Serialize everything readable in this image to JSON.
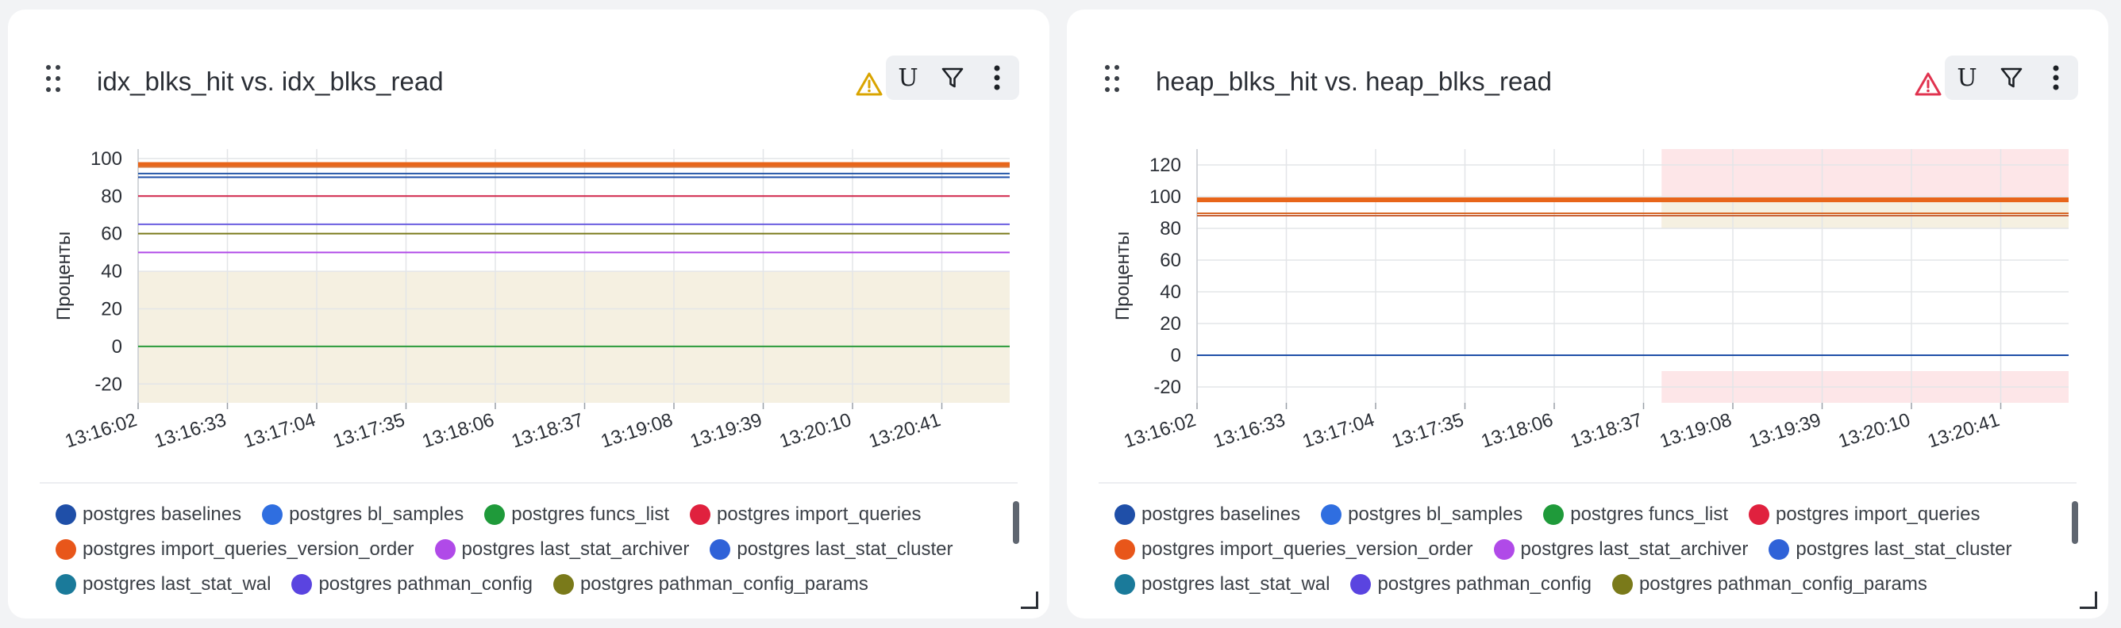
{
  "panels": [
    {
      "id": "left",
      "title": "idx_blks_hit vs. idx_blks_read",
      "warning": {
        "icon": "warning-triangle-icon",
        "color": "#d9a400"
      },
      "toolbar": {
        "unit_label": "U",
        "filter_icon": "filter-icon",
        "menu_icon": "more-vertical-icon"
      },
      "chart_data": {
        "type": "line",
        "ylabel": "Проценты",
        "ylim": [
          -30,
          105
        ],
        "yticks": [
          "100",
          "80",
          "60",
          "40",
          "20",
          "0",
          "-20"
        ],
        "xticks": [
          "13:16:02",
          "13:16:33",
          "13:17:04",
          "13:17:35",
          "13:18:06",
          "13:18:37",
          "13:19:08",
          "13:19:39",
          "13:20:10",
          "13:20:41"
        ],
        "bands": [
          {
            "from": -30,
            "to": 40,
            "color": "#f5f0e1",
            "span": [
              0,
              1
            ]
          }
        ],
        "series": [
          {
            "value": 97,
            "color": "#e8651a",
            "width": 5
          },
          {
            "value": 95.5,
            "color": "#d9763a",
            "width": 2
          },
          {
            "value": 92,
            "color": "#2557a8",
            "width": 2
          },
          {
            "value": 90,
            "color": "#1f4fa8",
            "width": 2
          },
          {
            "value": 80,
            "color": "#d0254a",
            "width": 2
          },
          {
            "value": 65,
            "color": "#6a5de0",
            "width": 2
          },
          {
            "value": 60,
            "color": "#7a7a1a",
            "width": 2
          },
          {
            "value": 50,
            "color": "#b04ae8",
            "width": 2
          },
          {
            "value": 0,
            "color": "#2a9a3a",
            "width": 2
          }
        ]
      }
    },
    {
      "id": "right",
      "title": "heap_blks_hit vs. heap_blks_read",
      "warning": {
        "icon": "warning-triangle-icon",
        "color": "#e0334f"
      },
      "toolbar": {
        "unit_label": "U",
        "filter_icon": "filter-icon",
        "menu_icon": "more-vertical-icon"
      },
      "chart_data": {
        "type": "line",
        "ylabel": "Проценты",
        "ylim": [
          -30,
          130
        ],
        "yticks": [
          "120",
          "100",
          "80",
          "60",
          "40",
          "20",
          "0",
          "-20"
        ],
        "xticks": [
          "13:16:02",
          "13:16:33",
          "13:17:04",
          "13:17:35",
          "13:18:06",
          "13:18:37",
          "13:19:08",
          "13:19:39",
          "13:20:10",
          "13:20:41"
        ],
        "bands": [
          {
            "from": 80,
            "to": 130,
            "color": "#fde6e8",
            "span": [
              0.533,
              1
            ]
          },
          {
            "from": 80,
            "to": 97,
            "color": "#f5f0e1",
            "span": [
              0.533,
              1
            ]
          },
          {
            "from": -30,
            "to": -10,
            "color": "#fde6e8",
            "span": [
              0.533,
              1
            ]
          }
        ],
        "series": [
          {
            "value": 98,
            "color": "#e8651a",
            "width": 6
          },
          {
            "value": 89.5,
            "color": "#d96a2a",
            "width": 2
          },
          {
            "value": 88,
            "color": "#c8643a",
            "width": 2
          },
          {
            "value": 0,
            "color": "#1f4fa8",
            "width": 2
          }
        ]
      }
    }
  ],
  "legend": [
    {
      "label": "postgres baselines",
      "color": "#1f4fa8"
    },
    {
      "label": "postgres bl_samples",
      "color": "#2f6ee0"
    },
    {
      "label": "postgres funcs_list",
      "color": "#1f9a3a"
    },
    {
      "label": "postgres import_queries",
      "color": "#e0213e"
    },
    {
      "label": "postgres import_queries_version_order",
      "color": "#e8561a"
    },
    {
      "label": "postgres last_stat_archiver",
      "color": "#b04ae8"
    },
    {
      "label": "postgres last_stat_cluster",
      "color": "#2f62d8"
    },
    {
      "label": "postgres last_stat_wal",
      "color": "#1a7a9a"
    },
    {
      "label": "postgres pathman_config",
      "color": "#5a44e0"
    },
    {
      "label": "postgres pathman_config_params",
      "color": "#7a7a1a"
    }
  ]
}
